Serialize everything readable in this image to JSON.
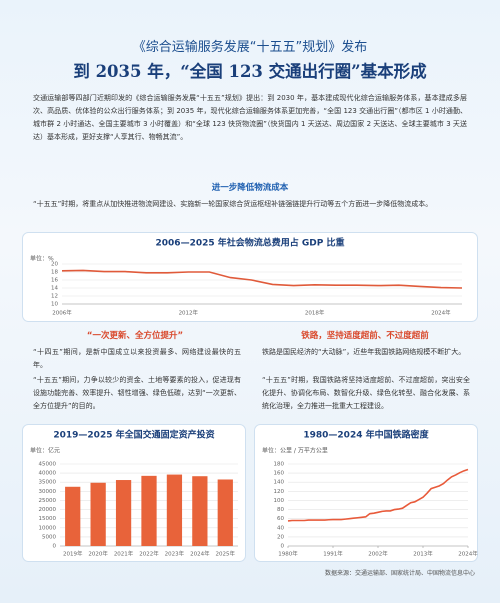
{
  "header": {
    "title": "《综合运输服务发展“十五五”规划》发布",
    "subtitle": "到 2035 年，“全国 123 交通出行圈”基本形成"
  },
  "intro": "交通运输部等四部门近期印发的《综合运输服务发展“十五五”规划》提出：到 2030 年，基本建成现代化综合运输服务体系，基本建成多层次、高品质、优体验的公众出行服务体系；到 2035 年，现代化综合运输服务体系更加完善，“全国 123 交通出行圈”（都市区 1 小时通勤、城市群 2 小时通达、全国主要城市 3 小时覆盖）和“全球 123 快货物流圈”（快货国内 1 天送达、周边国家 2 天送达、全球主要城市 3 天送达）基本形成，更好支撑“人享其行、物畅其流”。",
  "section1": {
    "heading": "进一步降低物流成本",
    "text": "“十五五”时期，将重点从加快推进物流网建设、实施新一轮国家综合货运枢纽补链强链提升行动等五个方面进一步降低物流成本。"
  },
  "section2": {
    "heading": "“一次更新、全方位提升”",
    "paragraphs": [
      "“十四五”期间，是新中国成立以来投资最多、网络建设最快的五年。",
      "“十五五”期间，力争以较少的资金、土地等要素的投入，促进现有设施功能完善、效率提升、韧性增强、绿色低碳，达到“一次更新、全方位提升”的目的。"
    ]
  },
  "section3": {
    "heading": "铁路，坚持适度超前、不过度超前",
    "paragraphs": [
      "铁路是国民经济的“大动脉”，近些年我国铁路网络规模不断扩大。",
      "“十五五”时期，我国铁路将坚持适度超前、不过度超前，突出安全化提升、协调化布局、数智化升级、绿色化转型、融合化发展、系统化治理，全力推进一批重大工程建设。"
    ]
  },
  "source": "数据来源：交通运输部、国家统计局、中国物流信息中心",
  "chart_data": [
    {
      "type": "line",
      "title": "2006—2025 年社会物流总费用占 GDP 比重",
      "unit": "单位：%",
      "color": "#e05a3a",
      "categories": [
        "2006年",
        null,
        null,
        null,
        null,
        null,
        "2012年",
        null,
        null,
        null,
        null,
        null,
        "2018年",
        null,
        null,
        null,
        null,
        null,
        "2024年",
        null
      ],
      "values": [
        18.3,
        18.4,
        18.1,
        18.1,
        17.8,
        17.8,
        18.0,
        18.0,
        16.6,
        16.0,
        14.9,
        14.6,
        14.8,
        14.7,
        14.7,
        14.6,
        14.7,
        14.4,
        14.1,
        14.0
      ],
      "ylim": [
        10,
        20
      ],
      "yticks": [
        10,
        12,
        14,
        16,
        18,
        20
      ],
      "grid": true
    },
    {
      "type": "bar",
      "title": "2019—2025 年全国交通固定资产投资",
      "unit": "单位：亿元",
      "color": "#e8633a",
      "categories": [
        "2019年",
        "2020年",
        "2021年",
        "2022年",
        "2023年",
        "2024年",
        "2025年"
      ],
      "values": [
        32500,
        34700,
        36200,
        38500,
        39200,
        38300,
        36500
      ],
      "ylim": [
        0,
        45000
      ],
      "yticks": [
        0,
        5000,
        10000,
        15000,
        20000,
        25000,
        30000,
        35000,
        40000,
        45000
      ],
      "grid": true
    },
    {
      "type": "line",
      "title": "1980—2024 年中国铁路密度",
      "unit": "单位：公里 / 万平方公里",
      "color": "#e85a3a",
      "x": [
        1980,
        1981,
        1982,
        1983,
        1984,
        1985,
        1986,
        1987,
        1988,
        1989,
        1990,
        1991,
        1992,
        1993,
        1994,
        1995,
        1996,
        1997,
        1998,
        1999,
        2000,
        2001,
        2002,
        2003,
        2004,
        2005,
        2006,
        2007,
        2008,
        2009,
        2010,
        2011,
        2012,
        2013,
        2014,
        2015,
        2016,
        2017,
        2018,
        2019,
        2020,
        2021,
        2022,
        2023,
        2024
      ],
      "values": [
        55,
        56,
        56,
        56,
        56,
        57,
        57,
        57,
        57,
        57,
        57.6,
        58,
        58,
        58,
        59,
        60,
        61,
        62,
        63,
        64,
        71,
        72,
        74,
        76,
        77,
        77,
        80,
        81,
        83,
        89,
        95,
        97,
        102,
        107,
        116,
        126,
        129,
        132,
        137,
        145,
        152,
        156,
        161,
        165,
        168
      ],
      "xlim": [
        1980,
        2024
      ],
      "xticks": [
        {
          "value": 1980,
          "label": "1980年"
        },
        {
          "value": 1991,
          "label": "1991年"
        },
        {
          "value": 2002,
          "label": "2002年"
        },
        {
          "value": 2013,
          "label": "2013年"
        },
        {
          "value": 2024,
          "label": "2024年"
        }
      ],
      "ylim": [
        0,
        180
      ],
      "yticks": [
        0,
        20,
        40,
        60,
        80,
        100,
        120,
        140,
        160,
        180
      ],
      "grid": true
    }
  ]
}
